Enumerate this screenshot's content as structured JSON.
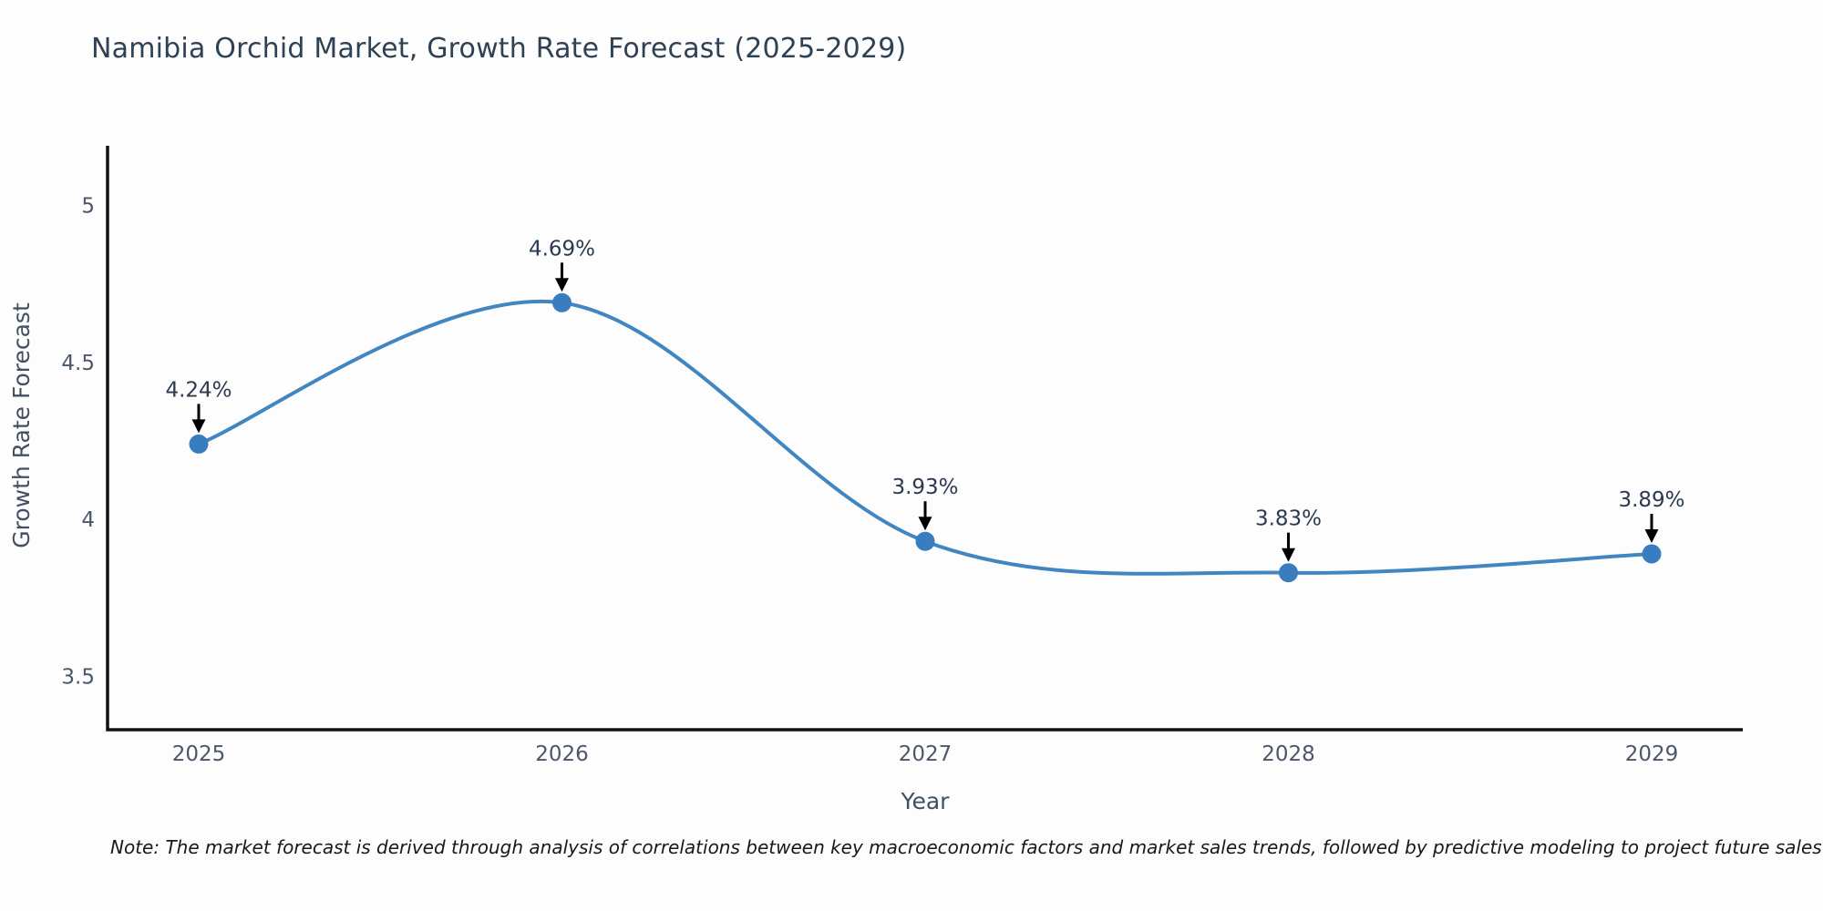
{
  "note": "Note: The market forecast is derived through analysis of correlations between key macroeconomic factors and market sales trends, followed by predictive modeling to project future sales",
  "chart_data": {
    "type": "line",
    "title": "Namibia Orchid Market, Growth Rate Forecast (2025-2029)",
    "xlabel": "Year",
    "ylabel": "Growth Rate Forecast",
    "x": [
      2025,
      2026,
      2027,
      2028,
      2029
    ],
    "values": [
      4.24,
      4.69,
      3.93,
      3.83,
      3.89
    ],
    "point_labels": [
      "4.24%",
      "4.69%",
      "3.93%",
      "3.83%",
      "3.89%"
    ],
    "yticks": [
      3.5,
      4,
      4.5,
      5
    ],
    "ylim": [
      3.33,
      5.19
    ],
    "line_shape": "spline",
    "grid": false,
    "legend": false,
    "line_color": "#4186c0",
    "marker_color": "#3a7dbf",
    "axis_color": "#111111",
    "arrow_color": "#000000",
    "title_color": "#2f4154"
  }
}
